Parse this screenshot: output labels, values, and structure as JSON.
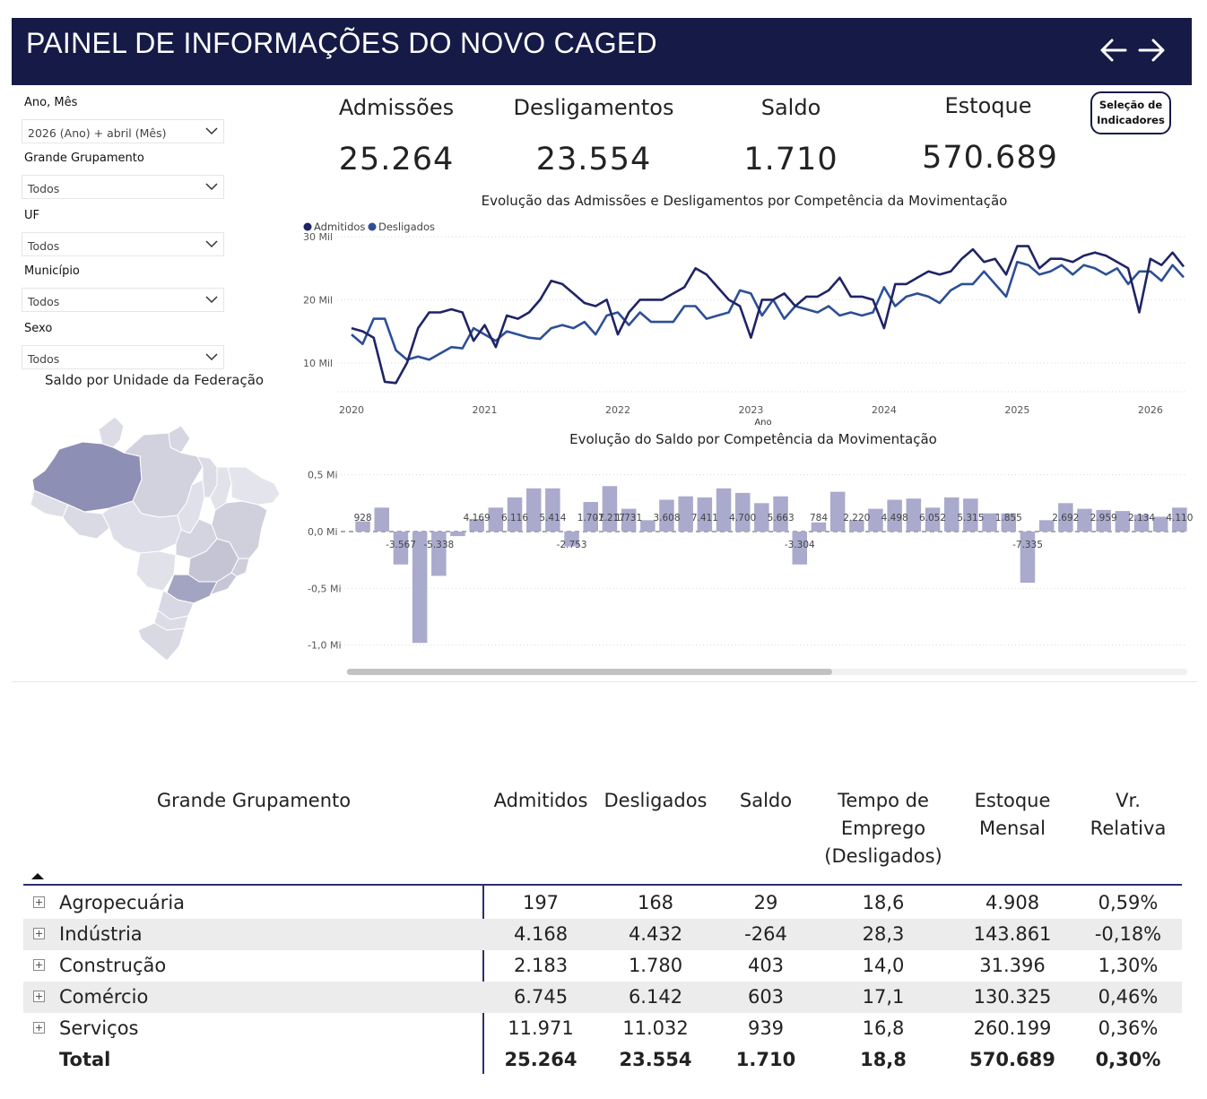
{
  "header": {
    "title": "PAINEL DE INFORMAÇÕES DO NOVO CAGED",
    "back_icon": "arrow-left-icon",
    "forward_icon": "arrow-right-icon"
  },
  "filters": [
    {
      "label": "Ano, Mês",
      "value": "2026 (Ano) + abril (Mês)"
    },
    {
      "label": "Grande Grupamento",
      "value": "Todos"
    },
    {
      "label": "UF",
      "value": "Todos"
    },
    {
      "label": "Município",
      "value": "Todos"
    },
    {
      "label": "Sexo",
      "value": "Todos"
    }
  ],
  "kpis": [
    {
      "label": "Admissões",
      "value": "25.264"
    },
    {
      "label": "Desligamentos",
      "value": "23.554"
    },
    {
      "label": "Saldo",
      "value": "1.710"
    },
    {
      "label": "Estoque",
      "value": "570.689"
    }
  ],
  "indicator_button": {
    "line1": "Seleção de",
    "line2": "Indicadores"
  },
  "map": {
    "title": "Saldo por Unidade da Federação"
  },
  "colors": {
    "header": "#161a46",
    "admitidos": "#1f2466",
    "desligados": "#2d4f96",
    "bars": "#a9aacc",
    "map_dark": "#8e8fb5"
  },
  "chart_data": [
    {
      "type": "line",
      "title": "Evolução das Admissões e Desligamentos por Competência da Movimentação",
      "xlabel": "Ano",
      "ylabel": "",
      "x_ticks": [
        "2020",
        "2021",
        "2022",
        "2023",
        "2024",
        "2025",
        "2026"
      ],
      "y_ticks": [
        {
          "value": 30000,
          "label": "30 Mil"
        },
        {
          "value": 20000,
          "label": "20 Mil"
        },
        {
          "value": 10000,
          "label": "10 Mil"
        }
      ],
      "ylim": [
        5000,
        32000
      ],
      "legend_position": "top-left",
      "series": [
        {
          "name": "Admitidos",
          "values": [
            15500,
            15000,
            14000,
            7000,
            6800,
            10000,
            15500,
            18000,
            18000,
            18500,
            18000,
            13500,
            16000,
            12500,
            17500,
            17000,
            18000,
            20000,
            23000,
            22500,
            21000,
            19500,
            19000,
            20000,
            14500,
            18000,
            20000,
            20000,
            20000,
            21000,
            22000,
            25000,
            24000,
            22000,
            20000,
            19000,
            14000,
            20000,
            20000,
            21000,
            19000,
            20500,
            20500,
            21500,
            23500,
            20500,
            20500,
            20000,
            15500,
            22500,
            22500,
            23500,
            24500,
            24000,
            24500,
            26500,
            28000,
            26000,
            26500,
            24000,
            28500,
            28500,
            25000,
            26500,
            26500,
            26000,
            27000,
            27500,
            27000,
            26000,
            25000,
            18000,
            26500,
            25500,
            27500,
            25264
          ]
        },
        {
          "name": "Desligados",
          "values": [
            14500,
            13000,
            17000,
            17000,
            12000,
            10500,
            11000,
            10500,
            11500,
            12500,
            12300,
            15500,
            14500,
            13500,
            15000,
            14500,
            14000,
            13800,
            15500,
            16000,
            15500,
            16500,
            14500,
            17500,
            18000,
            16000,
            18000,
            16500,
            16500,
            16500,
            19000,
            19000,
            17000,
            17500,
            18000,
            21500,
            21000,
            17500,
            20000,
            17000,
            19000,
            18500,
            18000,
            19000,
            17500,
            18000,
            17500,
            18000,
            22000,
            19000,
            20500,
            21000,
            20500,
            19500,
            21500,
            22500,
            22500,
            24500,
            22500,
            20500,
            26000,
            25500,
            24000,
            24500,
            25500,
            24000,
            25500,
            25000,
            24000,
            25000,
            22500,
            24500,
            24500,
            23000,
            25500,
            23554
          ]
        }
      ]
    },
    {
      "type": "bar",
      "title": "Evolução do Saldo por Competência da Movimentação",
      "y_ticks": [
        {
          "value": 500000,
          "label": "0,5 Mi"
        },
        {
          "value": 0,
          "label": "0,0 Mi"
        },
        {
          "value": -500000,
          "label": "-0,5 Mi"
        },
        {
          "value": -1000000,
          "label": "-1,0 Mi"
        }
      ],
      "ylim": [
        -1050000,
        560000
      ],
      "values": [
        90000,
        210000,
        -290000,
        -980000,
        -390000,
        -40000,
        110000,
        210000,
        300000,
        380000,
        380000,
        -130000,
        260000,
        400000,
        200000,
        100000,
        280000,
        310000,
        300000,
        380000,
        340000,
        250000,
        310000,
        -290000,
        80000,
        350000,
        100000,
        200000,
        280000,
        290000,
        210000,
        300000,
        290000,
        160000,
        160000,
        -450000,
        100000,
        250000,
        200000,
        190000,
        180000,
        150000,
        130000,
        210000
      ],
      "data_labels": [
        {
          "i": 0,
          "text": "928"
        },
        {
          "i": 2,
          "text": "-3.567"
        },
        {
          "i": 4,
          "text": "-5.338"
        },
        {
          "i": 6,
          "text": "4.169"
        },
        {
          "i": 8,
          "text": "6.116"
        },
        {
          "i": 10,
          "text": "5.414"
        },
        {
          "i": 11,
          "text": "-2.753"
        },
        {
          "i": 12,
          "text": "1.707"
        },
        {
          "i": 13,
          "text": "-1.217"
        },
        {
          "i": 14,
          "text": "1.731"
        },
        {
          "i": 16,
          "text": "3.608"
        },
        {
          "i": 18,
          "text": "7.411"
        },
        {
          "i": 20,
          "text": "4.700"
        },
        {
          "i": 22,
          "text": "5.663"
        },
        {
          "i": 23,
          "text": "-3.304"
        },
        {
          "i": 24,
          "text": "784"
        },
        {
          "i": 26,
          "text": "2.220"
        },
        {
          "i": 28,
          "text": "4.498"
        },
        {
          "i": 30,
          "text": "6.052"
        },
        {
          "i": 32,
          "text": "5.315"
        },
        {
          "i": 34,
          "text": "1.855"
        },
        {
          "i": 35,
          "text": "-7.335"
        },
        {
          "i": 37,
          "text": "2.692"
        },
        {
          "i": 39,
          "text": "2.959"
        },
        {
          "i": 41,
          "text": "2.134"
        },
        {
          "i": 43,
          "text": "4.110"
        }
      ]
    }
  ],
  "table": {
    "headers": {
      "group": "Grande Grupamento",
      "admitidos": "Admitidos",
      "desligados": "Desligados",
      "saldo": "Saldo",
      "tempo": [
        "Tempo de",
        "Emprego",
        "(Desligados)"
      ],
      "estoque": [
        "Estoque",
        "Mensal"
      ],
      "vr": [
        "Vr.",
        "Relativa"
      ]
    },
    "rows": [
      {
        "name": "Agropecuária",
        "admitidos": "197",
        "desligados": "168",
        "saldo": "29",
        "tempo": "18,6",
        "estoque": "4.908",
        "vr": "0,59%"
      },
      {
        "name": "Indústria",
        "admitidos": "4.168",
        "desligados": "4.432",
        "saldo": "-264",
        "tempo": "28,3",
        "estoque": "143.861",
        "vr": "-0,18%"
      },
      {
        "name": "Construção",
        "admitidos": "2.183",
        "desligados": "1.780",
        "saldo": "403",
        "tempo": "14,0",
        "estoque": "31.396",
        "vr": "1,30%"
      },
      {
        "name": "Comércio",
        "admitidos": "6.745",
        "desligados": "6.142",
        "saldo": "603",
        "tempo": "17,1",
        "estoque": "130.325",
        "vr": "0,46%"
      },
      {
        "name": "Serviços",
        "admitidos": "11.971",
        "desligados": "11.032",
        "saldo": "939",
        "tempo": "16,8",
        "estoque": "260.199",
        "vr": "0,36%"
      }
    ],
    "total": {
      "name": "Total",
      "admitidos": "25.264",
      "desligados": "23.554",
      "saldo": "1.710",
      "tempo": "18,8",
      "estoque": "570.689",
      "vr": "0,30%"
    }
  }
}
